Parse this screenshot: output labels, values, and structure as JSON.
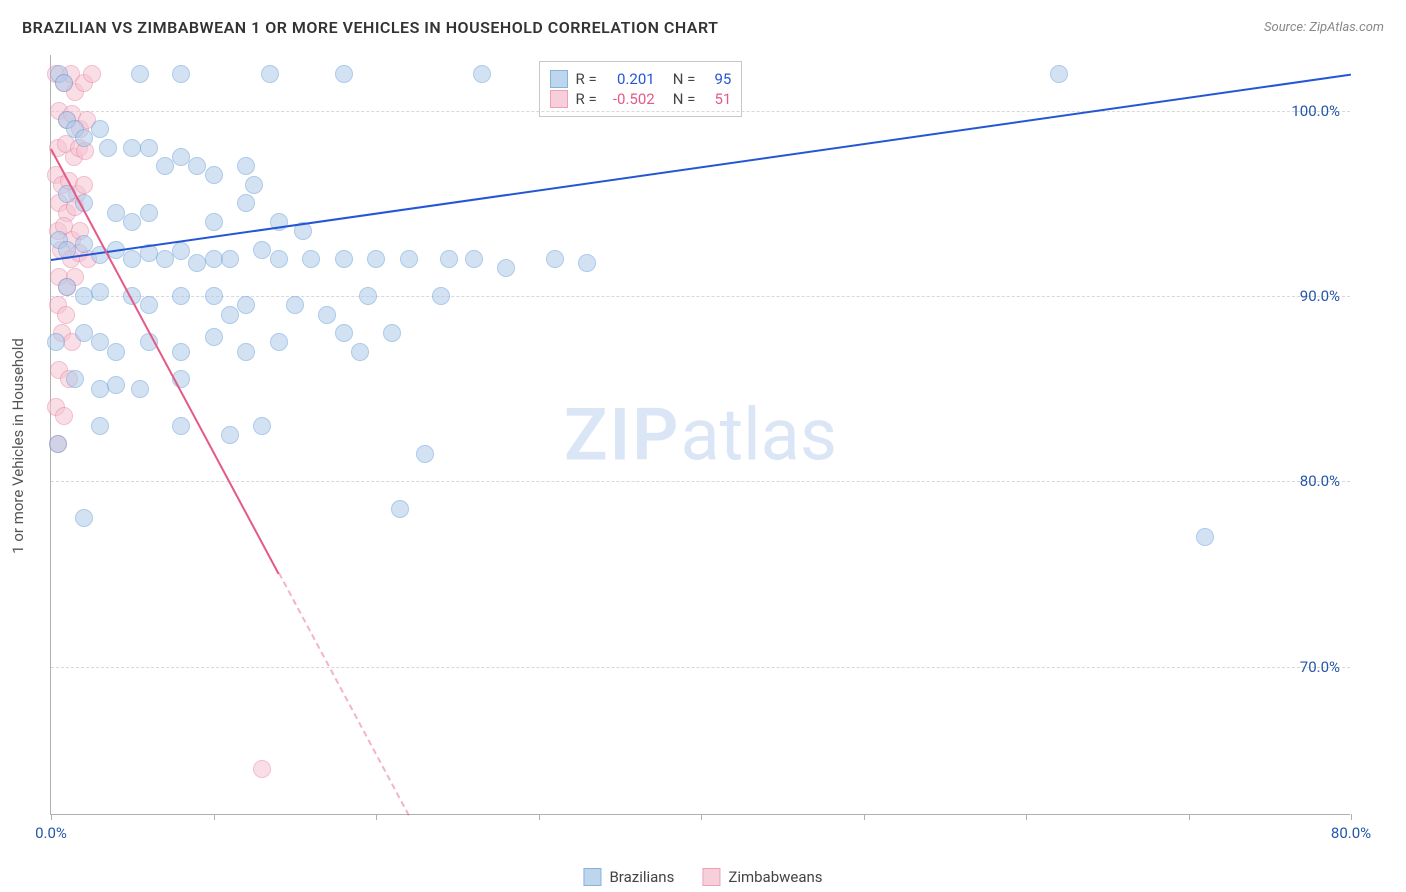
{
  "header": {
    "title": "BRAZILIAN VS ZIMBABWEAN 1 OR MORE VEHICLES IN HOUSEHOLD CORRELATION CHART",
    "source": "Source: ZipAtlas.com"
  },
  "chart": {
    "type": "scatter",
    "xlim": [
      0,
      80
    ],
    "ylim": [
      62,
      103
    ],
    "xticks": [
      0,
      10,
      20,
      30,
      40,
      50,
      60,
      70,
      80
    ],
    "xtick_labels": {
      "0": "0.0%",
      "80": "80.0%"
    },
    "yticks": [
      70,
      80,
      90,
      100
    ],
    "ytick_labels": {
      "70": "70.0%",
      "80": "80.0%",
      "90": "90.0%",
      "100": "100.0%"
    },
    "ylabel": "1 or more Vehicles in Household",
    "background_color": "#ffffff",
    "grid_color": "#d8d8d8",
    "border_color": "#b0b0b0",
    "xlabel_color": "#2456a8",
    "ylabel_color": "#2456a8",
    "axis_title_color": "#555555",
    "point_radius": 9,
    "point_stroke_width": 1.5,
    "watermark": {
      "zip": "ZIP",
      "atlas": "atlas",
      "color": "#d6e4f5",
      "opacity": 0.9
    }
  },
  "series": {
    "brazilians": {
      "label": "Brazilians",
      "fill": "#aecbeb",
      "stroke": "#6b9fd6",
      "fill_opacity": 0.55,
      "line_color": "#2456d6",
      "R": "0.201",
      "N": "95",
      "trend": {
        "x1": 0,
        "y1": 92,
        "x2": 80,
        "y2": 102,
        "dash_from_x": null
      },
      "points": [
        [
          0.5,
          102
        ],
        [
          0.8,
          101.5
        ],
        [
          5.5,
          102
        ],
        [
          8,
          102
        ],
        [
          13.5,
          102
        ],
        [
          18,
          102
        ],
        [
          26.5,
          102
        ],
        [
          62,
          102
        ],
        [
          1,
          99.5
        ],
        [
          1.5,
          99
        ],
        [
          2,
          98.5
        ],
        [
          3,
          99
        ],
        [
          3.5,
          98
        ],
        [
          5,
          98
        ],
        [
          6,
          98
        ],
        [
          7,
          97
        ],
        [
          8,
          97.5
        ],
        [
          9,
          97
        ],
        [
          10,
          96.5
        ],
        [
          12,
          97
        ],
        [
          12.5,
          96
        ],
        [
          1,
          95.5
        ],
        [
          2,
          95
        ],
        [
          4,
          94.5
        ],
        [
          5,
          94
        ],
        [
          6,
          94.5
        ],
        [
          10,
          94
        ],
        [
          12,
          95
        ],
        [
          14,
          94
        ],
        [
          15.5,
          93.5
        ],
        [
          0.5,
          93
        ],
        [
          1,
          92.5
        ],
        [
          2,
          92.8
        ],
        [
          3,
          92.2
        ],
        [
          4,
          92.5
        ],
        [
          5,
          92
        ],
        [
          6,
          92.3
        ],
        [
          7,
          92
        ],
        [
          8,
          92.4
        ],
        [
          9,
          91.8
        ],
        [
          10,
          92
        ],
        [
          11,
          92
        ],
        [
          13,
          92.5
        ],
        [
          14,
          92
        ],
        [
          16,
          92
        ],
        [
          18,
          92
        ],
        [
          20,
          92
        ],
        [
          22,
          92
        ],
        [
          24.5,
          92
        ],
        [
          26,
          92
        ],
        [
          28,
          91.5
        ],
        [
          31,
          92
        ],
        [
          33,
          91.8
        ],
        [
          1,
          90.5
        ],
        [
          2,
          90
        ],
        [
          3,
          90.2
        ],
        [
          5,
          90
        ],
        [
          6,
          89.5
        ],
        [
          8,
          90
        ],
        [
          10,
          90
        ],
        [
          11,
          89
        ],
        [
          12,
          89.5
        ],
        [
          15,
          89.5
        ],
        [
          17,
          89
        ],
        [
          19.5,
          90
        ],
        [
          24,
          90
        ],
        [
          2,
          88
        ],
        [
          3,
          87.5
        ],
        [
          4,
          87
        ],
        [
          6,
          87.5
        ],
        [
          8,
          87
        ],
        [
          10,
          87.8
        ],
        [
          12,
          87
        ],
        [
          14,
          87.5
        ],
        [
          18,
          88
        ],
        [
          19,
          87
        ],
        [
          21,
          88
        ],
        [
          1.5,
          85.5
        ],
        [
          3,
          85
        ],
        [
          4,
          85.2
        ],
        [
          5.5,
          85
        ],
        [
          8,
          85.5
        ],
        [
          3,
          83
        ],
        [
          8,
          83
        ],
        [
          13,
          83
        ],
        [
          11,
          82.5
        ],
        [
          23,
          81.5
        ],
        [
          2,
          78
        ],
        [
          21.5,
          78.5
        ],
        [
          0.3,
          87.5
        ],
        [
          71,
          77
        ],
        [
          0.4,
          82
        ]
      ]
    },
    "zimbabweans": {
      "label": "Zimbabweans",
      "fill": "#f6c4d3",
      "stroke": "#e88aa7",
      "fill_opacity": 0.55,
      "line_color": "#e35a86",
      "R": "-0.502",
      "N": "51",
      "trend": {
        "x1": 0,
        "y1": 98,
        "x2": 22,
        "y2": 62,
        "dash_from_x": 14
      },
      "points": [
        [
          0.3,
          102
        ],
        [
          0.8,
          101.5
        ],
        [
          1.2,
          102
        ],
        [
          1.5,
          101
        ],
        [
          2,
          101.5
        ],
        [
          2.5,
          102
        ],
        [
          0.5,
          100
        ],
        [
          1,
          99.5
        ],
        [
          1.3,
          99.8
        ],
        [
          1.8,
          99
        ],
        [
          2.2,
          99.5
        ],
        [
          0.4,
          98
        ],
        [
          0.9,
          98.2
        ],
        [
          1.4,
          97.5
        ],
        [
          1.7,
          98
        ],
        [
          2.1,
          97.8
        ],
        [
          0.3,
          96.5
        ],
        [
          0.7,
          96
        ],
        [
          1.1,
          96.2
        ],
        [
          1.6,
          95.5
        ],
        [
          2,
          96
        ],
        [
          0.5,
          95
        ],
        [
          1,
          94.5
        ],
        [
          1.5,
          94.8
        ],
        [
          0.4,
          93.5
        ],
        [
          0.8,
          93.8
        ],
        [
          1.3,
          93
        ],
        [
          1.8,
          93.5
        ],
        [
          0.6,
          92.5
        ],
        [
          1.2,
          92
        ],
        [
          1.7,
          92.3
        ],
        [
          2.3,
          92
        ],
        [
          0.5,
          91
        ],
        [
          1,
          90.5
        ],
        [
          1.5,
          91
        ],
        [
          0.4,
          89.5
        ],
        [
          0.9,
          89
        ],
        [
          0.7,
          88
        ],
        [
          1.3,
          87.5
        ],
        [
          0.5,
          86
        ],
        [
          1.1,
          85.5
        ],
        [
          0.3,
          84
        ],
        [
          0.8,
          83.5
        ],
        [
          0.4,
          82
        ],
        [
          13,
          64.5
        ]
      ]
    }
  },
  "stats_box": {
    "R_label": "R =",
    "N_label": "N ="
  },
  "legend": {
    "item1": "Brazilians",
    "item2": "Zimbabweans"
  }
}
